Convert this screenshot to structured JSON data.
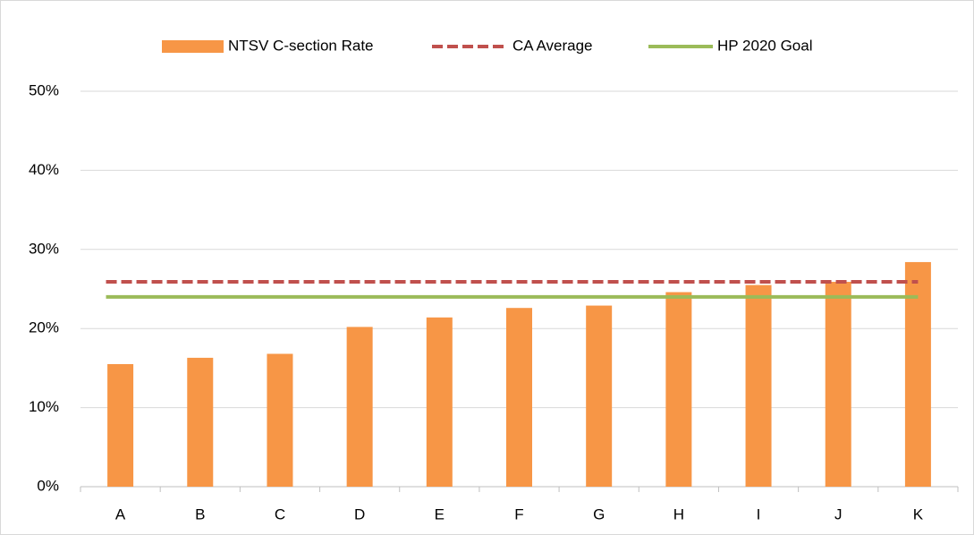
{
  "chart_data": {
    "type": "bar",
    "categories": [
      "A",
      "B",
      "C",
      "D",
      "E",
      "F",
      "G",
      "H",
      "I",
      "J",
      "K"
    ],
    "series": [
      {
        "name": "NTSV C-section Rate",
        "color": "#f79646",
        "type": "bar",
        "values": [
          15.5,
          16.3,
          16.8,
          20.2,
          21.4,
          22.6,
          22.9,
          24.6,
          25.5,
          25.9,
          28.4
        ]
      },
      {
        "name": "CA Average",
        "color": "#c0504d",
        "type": "line",
        "dashed": true,
        "value": 25.9
      },
      {
        "name": "HP 2020 Goal",
        "color": "#9bbb59",
        "type": "line",
        "dashed": false,
        "value": 24.0
      }
    ],
    "ylim": [
      0,
      50
    ],
    "yticks": [
      {
        "value": 0,
        "label": "0%"
      },
      {
        "value": 10,
        "label": "10%"
      },
      {
        "value": 20,
        "label": "20%"
      },
      {
        "value": 30,
        "label": "30%"
      },
      {
        "value": 40,
        "label": "40%"
      },
      {
        "value": 50,
        "label": "50%"
      }
    ],
    "grid": true,
    "legend": "top"
  }
}
